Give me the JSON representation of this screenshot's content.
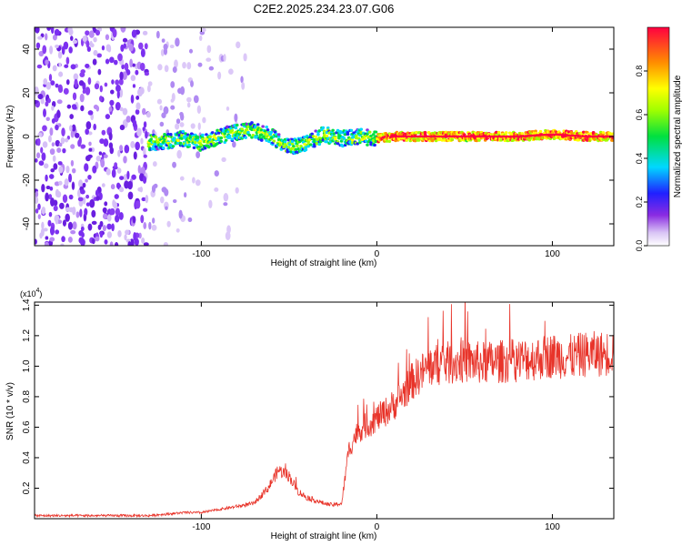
{
  "title": "C2E2.2025.234.23.07.G06",
  "chart_data": [
    {
      "type": "heatmap",
      "xlabel": "Height of straight line (km)",
      "ylabel": "Frequency (Hz)",
      "xlim": [
        -195,
        135
      ],
      "ylim": [
        -50,
        50
      ],
      "xticks": [
        -100,
        0,
        100
      ],
      "yticks": [
        -40,
        -20,
        0,
        20,
        40
      ],
      "xtick_labels": [
        "-100",
        "0",
        "100"
      ],
      "ytick_labels": [
        "-40",
        "-20",
        "0",
        "20",
        "40"
      ],
      "colorbar": {
        "label": "Normalized spectral amplitude",
        "range": [
          0,
          1
        ],
        "ticks": [
          0.0,
          0.2,
          0.4,
          0.6,
          0.8
        ],
        "tick_labels": [
          "0.0",
          "0.2",
          "0.4",
          "0.6",
          "0.8"
        ],
        "colormap": "rainbow (white-violet-blue-cyan-green-yellow-orange-red)"
      },
      "noise_region_x": [
        -195,
        -75
      ],
      "signal_start_x": -130,
      "ridge": {
        "x": [
          -130,
          -120,
          -110,
          -100,
          -90,
          -80,
          -70,
          -60,
          -50,
          -40,
          -30,
          -20,
          -10,
          0,
          10,
          20,
          40,
          60,
          80,
          100,
          120,
          135
        ],
        "freq": [
          -3,
          -2,
          -1,
          -3,
          0,
          2,
          3,
          0,
          -5,
          -3,
          1,
          -1,
          0,
          -1,
          0,
          0,
          0,
          0,
          0,
          1,
          0,
          0
        ]
      }
    },
    {
      "type": "line",
      "xlabel": "Height of straight line (km)",
      "ylabel": "SNR (10 * v/v)",
      "scale_note": "(x10^4)",
      "xlim": [
        -195,
        135
      ],
      "ylim": [
        0,
        1.42
      ],
      "xticks": [
        -100,
        0,
        100
      ],
      "yticks": [
        0.2,
        0.4,
        0.6,
        0.8,
        1.0,
        1.2,
        1.4
      ],
      "xtick_labels": [
        "-100",
        "0",
        "100"
      ],
      "ytick_labels": [
        "0.2",
        "0.4",
        "0.6",
        "0.8",
        "1.0",
        "1.2",
        "1.4"
      ],
      "series": [
        {
          "name": "SNR",
          "color": "#e8342a",
          "x": [
            -195,
            -170,
            -150,
            -130,
            -120,
            -110,
            -100,
            -90,
            -80,
            -70,
            -62,
            -56,
            -50,
            -45,
            -40,
            -35,
            -30,
            -25,
            -20,
            -16,
            -12,
            -8,
            -4,
            0,
            5,
            10,
            15,
            20,
            25,
            30,
            40,
            50,
            60,
            70,
            80,
            90,
            100,
            110,
            120,
            130,
            135
          ],
          "y": [
            0.02,
            0.02,
            0.02,
            0.02,
            0.03,
            0.04,
            0.04,
            0.06,
            0.08,
            0.1,
            0.2,
            0.32,
            0.28,
            0.18,
            0.14,
            0.12,
            0.1,
            0.09,
            0.1,
            0.45,
            0.55,
            0.6,
            0.62,
            0.66,
            0.7,
            0.75,
            0.82,
            0.9,
            0.95,
            1.0,
            1.02,
            1.03,
            1.02,
            1.03,
            1.04,
            1.05,
            1.07,
            1.06,
            1.08,
            1.08,
            1.1
          ]
        }
      ]
    }
  ]
}
